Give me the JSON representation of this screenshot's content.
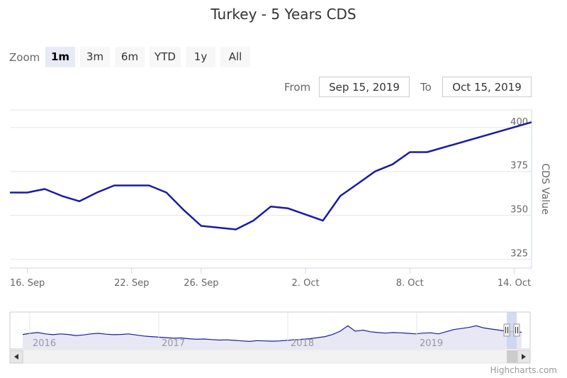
{
  "title": "Turkey - 5 Years CDS",
  "range_selector": {
    "zoom_label": "Zoom",
    "buttons": [
      "1m",
      "3m",
      "6m",
      "YTD",
      "1y",
      "All"
    ],
    "active": "1m",
    "from_label": "From",
    "from_value": "Sep 15, 2019",
    "to_label": "To",
    "to_value": "Oct 15, 2019"
  },
  "credits": "Highcharts.com",
  "chart_data": {
    "type": "line",
    "title": "Turkey - 5 Years CDS",
    "ylabel": "CDS Value",
    "ylim": [
      320,
      410
    ],
    "xlim": [
      "2019-09-15",
      "2019-10-15"
    ],
    "yticks": [
      325,
      350,
      375,
      400
    ],
    "xticks": [
      {
        "label": "16. Sep",
        "date": "2019-09-16"
      },
      {
        "label": "22. Sep",
        "date": "2019-09-22"
      },
      {
        "label": "26. Sep",
        "date": "2019-09-26"
      },
      {
        "label": "2. Oct",
        "date": "2019-10-02"
      },
      {
        "label": "8. Oct",
        "date": "2019-10-08"
      },
      {
        "label": "14. Oct",
        "date": "2019-10-14"
      }
    ],
    "grid": true,
    "series": [
      {
        "color": "#1a1aaa",
        "points": [
          {
            "x": "2019-09-15",
            "y": 363
          },
          {
            "x": "2019-09-16",
            "y": 363
          },
          {
            "x": "2019-09-17",
            "y": 365
          },
          {
            "x": "2019-09-18",
            "y": 361
          },
          {
            "x": "2019-09-19",
            "y": 358
          },
          {
            "x": "2019-09-20",
            "y": 363
          },
          {
            "x": "2019-09-21",
            "y": 367
          },
          {
            "x": "2019-09-23",
            "y": 367
          },
          {
            "x": "2019-09-24",
            "y": 363
          },
          {
            "x": "2019-09-25",
            "y": 353
          },
          {
            "x": "2019-09-26",
            "y": 344
          },
          {
            "x": "2019-09-28",
            "y": 342
          },
          {
            "x": "2019-09-29",
            "y": 347
          },
          {
            "x": "2019-09-30",
            "y": 355
          },
          {
            "x": "2019-10-01",
            "y": 354
          },
          {
            "x": "2019-10-03",
            "y": 347
          },
          {
            "x": "2019-10-04",
            "y": 361
          },
          {
            "x": "2019-10-05",
            "y": 368
          },
          {
            "x": "2019-10-06",
            "y": 375
          },
          {
            "x": "2019-10-07",
            "y": 379
          },
          {
            "x": "2019-10-08",
            "y": 386
          },
          {
            "x": "2019-10-09",
            "y": 386
          },
          {
            "x": "2019-10-15",
            "y": 403
          }
        ]
      }
    ],
    "navigator": {
      "years": [
        "2016",
        "2017",
        "2018",
        "2019"
      ],
      "series_color": "#1a1aaa",
      "fill_color": "#e8e8f5",
      "mask_color": "#c8d2ec"
    }
  }
}
